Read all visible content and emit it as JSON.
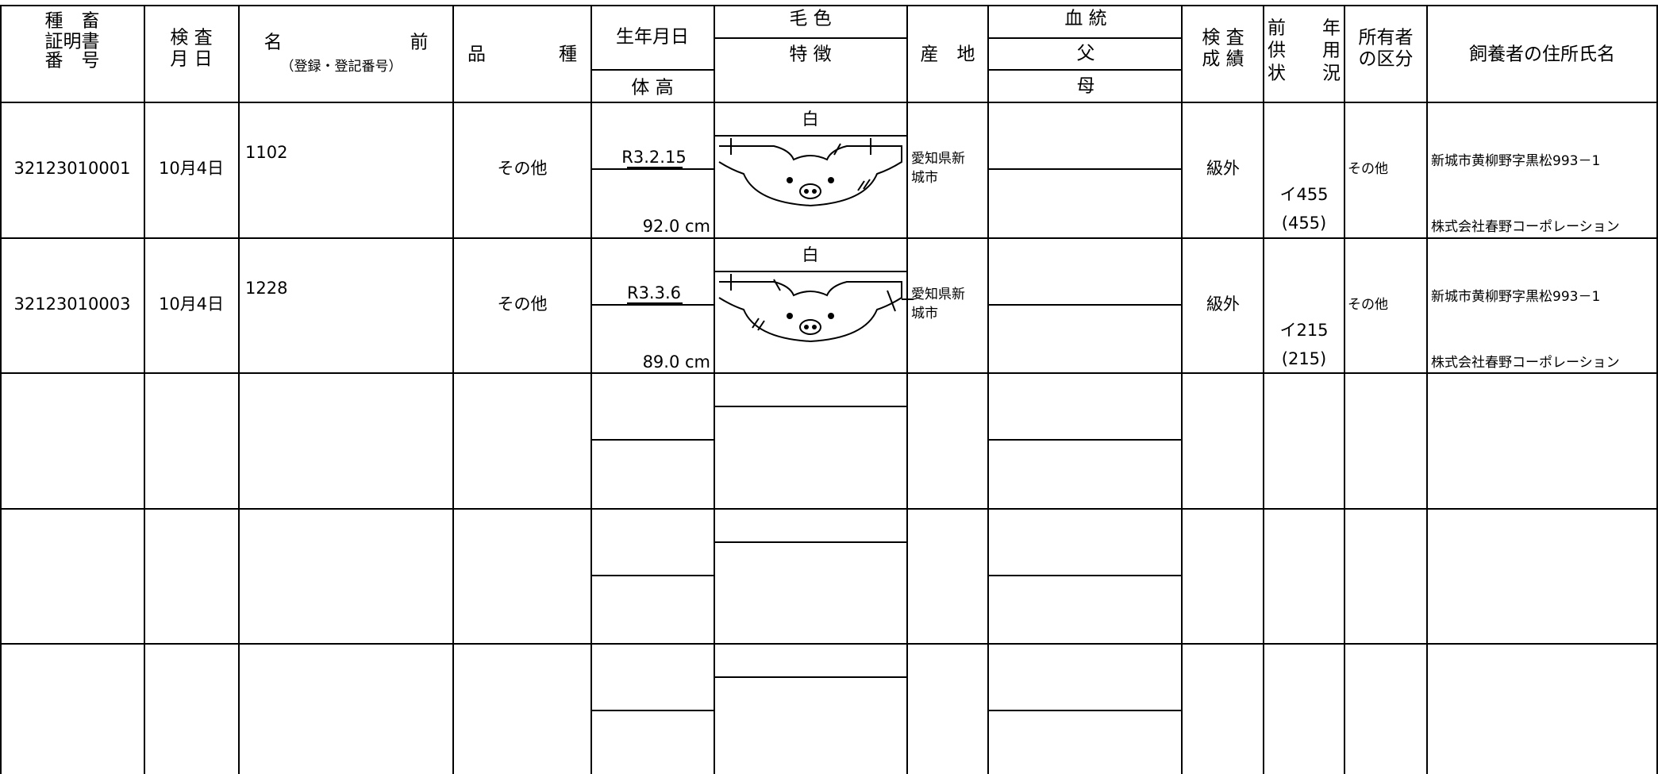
{
  "header": {
    "cert_no": [
      "種　畜",
      "証明書",
      "番　号"
    ],
    "inspection_date": [
      "検 査",
      "月 日"
    ],
    "name": "名　　　　　　　前",
    "name_sub": "（登録・登記番号）",
    "breed": "品　　　　種",
    "birth_date": "生年月日",
    "height": "体 高",
    "coat_color": "毛 色",
    "features": "特 徴",
    "origin": "産　地",
    "pedigree": "血 統",
    "sire": "父",
    "dam": "母",
    "grade": [
      "検 査",
      "成 績"
    ],
    "prior_use": [
      "前　　年",
      "供　　用",
      "状　　況"
    ],
    "owner_type": [
      "所有者",
      "の区分"
    ],
    "keeper": "飼養者の住所氏名"
  },
  "rows": [
    {
      "cert_no": "32123010001",
      "inspection_date": "10月4日",
      "name": "1102",
      "breed": "その他",
      "birth_date": "R3.2.15",
      "height": "92.0 cm",
      "coat_color": "白",
      "origin": [
        "愛知県新",
        "城市"
      ],
      "grade": "級外",
      "prior_use": [
        "イ455",
        "(455)"
      ],
      "owner_type": "その他",
      "keeper_address": "新城市黄柳野字黒松993－1",
      "keeper_name": "株式会社春野コーポレーション"
    },
    {
      "cert_no": "32123010003",
      "inspection_date": "10月4日",
      "name": "1228",
      "breed": "その他",
      "birth_date": "R3.3.6",
      "height": "89.0 cm",
      "coat_color": "白",
      "origin": [
        "愛知県新",
        "城市"
      ],
      "grade": "級外",
      "prior_use": [
        "イ215",
        "(215)"
      ],
      "owner_type": "その他",
      "keeper_address": "新城市黄柳野字黒松993－1",
      "keeper_name": "株式会社春野コーポレーション"
    }
  ]
}
